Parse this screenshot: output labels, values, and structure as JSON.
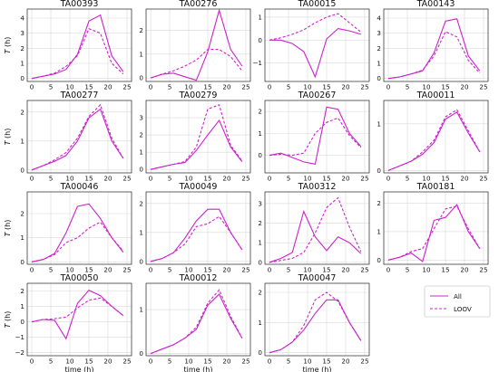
{
  "chart_data": {
    "type": "line",
    "legend": {
      "placement": "bottom-right",
      "entries": [
        {
          "label": "All",
          "style": "solid"
        },
        {
          "label": "LOOV",
          "style": "dashed"
        }
      ]
    },
    "color": "#cc22cc",
    "grid": true,
    "xlabel": "time (h)",
    "ylabel": "T (h)",
    "x": [
      0,
      3,
      6,
      9,
      12,
      15,
      18,
      21,
      24
    ],
    "xticks": [
      0,
      5,
      10,
      15,
      20,
      25
    ],
    "panels": [
      {
        "title": "TA00393",
        "ylim": [
          -0.2,
          4.6
        ],
        "yticks": [
          0,
          1,
          2,
          3,
          4
        ],
        "series": [
          {
            "name": "All",
            "values": [
              0.0,
              0.15,
              0.3,
              0.6,
              1.6,
              3.8,
              4.2,
              1.5,
              0.45
            ]
          },
          {
            "name": "LOOV",
            "values": [
              0.0,
              0.15,
              0.35,
              0.8,
              1.5,
              3.3,
              3.0,
              1.0,
              0.3
            ]
          }
        ]
      },
      {
        "title": "TA00276",
        "ylim": [
          -0.15,
          2.9
        ],
        "yticks": [
          0,
          1,
          2
        ],
        "series": [
          {
            "name": "All",
            "values": [
              0.0,
              0.15,
              0.2,
              0.05,
              -0.1,
              1.1,
              2.85,
              1.2,
              0.5
            ]
          },
          {
            "name": "LOOV",
            "values": [
              0.0,
              0.15,
              0.3,
              0.5,
              0.75,
              1.2,
              1.2,
              0.9,
              0.3
            ]
          }
        ]
      },
      {
        "title": "TA00015",
        "ylim": [
          -1.8,
          1.35
        ],
        "yticks": [
          -1,
          0,
          1
        ],
        "series": [
          {
            "name": "All",
            "values": [
              0.0,
              0.0,
              -0.15,
              -0.5,
              -1.6,
              0.05,
              0.5,
              0.4,
              0.25
            ]
          },
          {
            "name": "LOOV",
            "values": [
              0.0,
              0.1,
              0.25,
              0.45,
              0.75,
              1.0,
              1.15,
              0.75,
              0.35
            ]
          }
        ]
      },
      {
        "title": "TA00143",
        "ylim": [
          -0.2,
          4.6
        ],
        "yticks": [
          0,
          1,
          2,
          3,
          4
        ],
        "series": [
          {
            "name": "All",
            "values": [
              0.0,
              0.1,
              0.3,
              0.5,
              1.7,
              3.8,
              3.95,
              1.5,
              0.5
            ]
          },
          {
            "name": "LOOV",
            "values": [
              0.0,
              0.1,
              0.3,
              0.55,
              1.5,
              3.1,
              2.75,
              1.2,
              0.35
            ]
          }
        ]
      },
      {
        "title": "TA00277",
        "ylim": [
          -0.1,
          2.4
        ],
        "yticks": [
          0,
          1,
          2
        ],
        "series": [
          {
            "name": "All",
            "values": [
              0.0,
              0.15,
              0.3,
              0.5,
              1.0,
              1.8,
              2.1,
              1.0,
              0.4
            ]
          },
          {
            "name": "LOOV",
            "values": [
              0.0,
              0.15,
              0.35,
              0.6,
              1.1,
              1.85,
              2.25,
              1.1,
              0.4
            ]
          }
        ]
      },
      {
        "title": "TA00279",
        "ylim": [
          -0.2,
          4.0
        ],
        "yticks": [
          0,
          1,
          2,
          3
        ],
        "series": [
          {
            "name": "All",
            "values": [
              0.0,
              0.15,
              0.3,
              0.4,
              1.1,
              2.0,
              2.85,
              1.3,
              0.45
            ]
          },
          {
            "name": "LOOV",
            "values": [
              0.0,
              0.15,
              0.3,
              0.45,
              1.3,
              3.5,
              3.75,
              1.4,
              0.5
            ]
          }
        ]
      },
      {
        "title": "TA00267",
        "ylim": [
          -0.8,
          2.5
        ],
        "yticks": [
          0,
          1,
          2
        ],
        "series": [
          {
            "name": "All",
            "values": [
              0.0,
              0.1,
              -0.1,
              -0.3,
              -0.4,
              2.2,
              2.1,
              1.0,
              0.4
            ]
          },
          {
            "name": "LOOV",
            "values": [
              0.0,
              0.05,
              0.0,
              0.1,
              1.0,
              1.5,
              1.7,
              0.9,
              0.35
            ]
          }
        ]
      },
      {
        "title": "TA00011",
        "ylim": [
          -0.05,
          1.5
        ],
        "yticks": [
          0,
          1
        ],
        "series": [
          {
            "name": "All",
            "values": [
              0.0,
              0.1,
              0.2,
              0.35,
              0.6,
              1.1,
              1.25,
              0.8,
              0.4
            ]
          },
          {
            "name": "LOOV",
            "values": [
              0.0,
              0.1,
              0.2,
              0.4,
              0.65,
              1.15,
              1.3,
              0.85,
              0.4
            ]
          }
        ]
      },
      {
        "title": "TA00046",
        "ylim": [
          -0.1,
          2.9
        ],
        "yticks": [
          0,
          1,
          2
        ],
        "series": [
          {
            "name": "All",
            "values": [
              0.0,
              0.1,
              0.35,
              1.2,
              2.3,
              2.4,
              1.8,
              1.0,
              0.4
            ]
          },
          {
            "name": "LOOV",
            "values": [
              0.0,
              0.1,
              0.3,
              0.8,
              1.0,
              1.4,
              1.65,
              1.0,
              0.45
            ]
          }
        ]
      },
      {
        "title": "TA00049",
        "ylim": [
          -0.1,
          2.4
        ],
        "yticks": [
          0,
          1,
          2
        ],
        "series": [
          {
            "name": "All",
            "values": [
              0.0,
              0.1,
              0.3,
              0.8,
              1.4,
              1.8,
              1.8,
              1.0,
              0.4
            ]
          },
          {
            "name": "LOOV",
            "values": [
              0.0,
              0.1,
              0.3,
              0.6,
              1.2,
              1.3,
              1.55,
              1.0,
              0.4
            ]
          }
        ]
      },
      {
        "title": "TA00312",
        "ylim": [
          -0.1,
          3.6
        ],
        "yticks": [
          0,
          1,
          2,
          3
        ],
        "series": [
          {
            "name": "All",
            "values": [
              0.0,
              0.2,
              0.5,
              2.6,
              1.3,
              0.6,
              1.3,
              1.0,
              0.45
            ]
          },
          {
            "name": "LOOV",
            "values": [
              0.0,
              0.1,
              0.2,
              0.5,
              1.5,
              2.8,
              3.3,
              1.8,
              0.55
            ]
          }
        ]
      },
      {
        "title": "TA00181",
        "ylim": [
          -0.15,
          2.4
        ],
        "yticks": [
          0,
          1,
          2
        ],
        "series": [
          {
            "name": "All",
            "values": [
              0.0,
              0.1,
              0.25,
              -0.05,
              1.4,
              1.5,
              1.95,
              1.0,
              0.4
            ]
          },
          {
            "name": "LOOV",
            "values": [
              0.0,
              0.1,
              0.3,
              0.4,
              1.1,
              1.8,
              1.9,
              1.1,
              0.4
            ]
          }
        ]
      },
      {
        "title": "TA00050",
        "ylim": [
          -2.2,
          2.5
        ],
        "yticks": [
          -2,
          -1,
          0,
          1,
          2
        ],
        "series": [
          {
            "name": "All",
            "values": [
              0.0,
              0.15,
              0.1,
              -1.1,
              1.2,
              2.05,
              1.7,
              1.0,
              0.4
            ]
          },
          {
            "name": "LOOV",
            "values": [
              0.0,
              0.15,
              0.2,
              0.3,
              0.9,
              1.4,
              1.55,
              1.0,
              0.4
            ]
          }
        ]
      },
      {
        "title": "TA00012",
        "ylim": [
          -0.05,
          1.6
        ],
        "yticks": [
          0,
          1
        ],
        "series": [
          {
            "name": "All",
            "values": [
              0.0,
              0.1,
              0.2,
              0.35,
              0.55,
              1.1,
              1.35,
              0.8,
              0.35
            ]
          },
          {
            "name": "LOOV",
            "values": [
              0.0,
              0.1,
              0.2,
              0.35,
              0.6,
              1.15,
              1.45,
              0.85,
              0.35
            ]
          }
        ]
      },
      {
        "title": "TA00047",
        "ylim": [
          -0.1,
          2.3
        ],
        "yticks": [
          0,
          1,
          2
        ],
        "series": [
          {
            "name": "All",
            "values": [
              0.0,
              0.1,
              0.35,
              0.75,
              1.3,
              1.75,
              1.75,
              1.0,
              0.4
            ]
          },
          {
            "name": "LOOV",
            "values": [
              0.0,
              0.1,
              0.35,
              0.9,
              1.75,
              2.0,
              1.7,
              1.0,
              0.4
            ]
          }
        ]
      }
    ]
  }
}
